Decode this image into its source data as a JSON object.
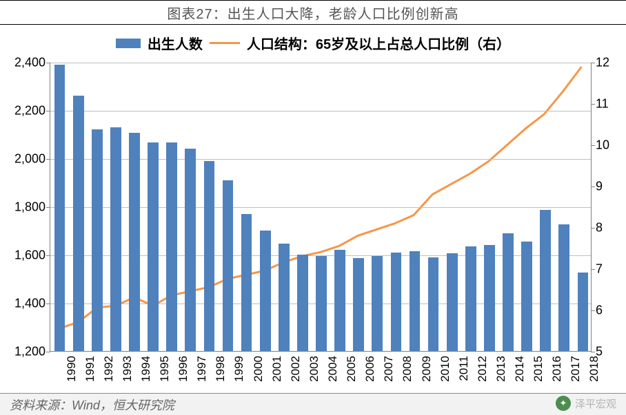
{
  "title": "图表27：出生人口大降，老龄人口比例创新高",
  "legend": {
    "bar_label": "出生人数",
    "line_label": "人口结构：65岁及以上占总人口比例（右）"
  },
  "source": "资料来源：Wind，恒大研究院",
  "watermark": "泽平宏观",
  "chart": {
    "type": "bar+line",
    "background_color": "#ffffff",
    "grid_color": "#bfbfbf",
    "axis_color": "#808080",
    "bar_color": "#4f81bd",
    "line_color": "#f79646",
    "line_width": 3,
    "bar_width_ratio": 0.58,
    "tick_fontsize": 18,
    "xlabel_fontsize": 17,
    "xlabel_rotation": -90,
    "y_left": {
      "min": 1200,
      "max": 2400,
      "step": 200,
      "ticks": [
        "1,200",
        "1,400",
        "1,600",
        "1,800",
        "2,000",
        "2,200",
        "2,400"
      ]
    },
    "y_right": {
      "min": 5,
      "max": 12,
      "step": 1,
      "ticks": [
        "5",
        "6",
        "7",
        "8",
        "9",
        "10",
        "11",
        "12"
      ]
    },
    "years": [
      "1990",
      "1991",
      "1992",
      "1993",
      "1994",
      "1995",
      "1996",
      "1997",
      "1998",
      "1999",
      "2000",
      "2001",
      "2002",
      "2003",
      "2004",
      "2005",
      "2006",
      "2007",
      "2008",
      "2009",
      "2010",
      "2011",
      "2012",
      "2013",
      "2014",
      "2015",
      "2016",
      "2017",
      "2018"
    ],
    "births": [
      2390,
      2260,
      2120,
      2130,
      2105,
      2065,
      2065,
      2040,
      1990,
      1910,
      1770,
      1700,
      1645,
      1600,
      1595,
      1620,
      1585,
      1595,
      1610,
      1615,
      1590,
      1605,
      1635,
      1640,
      1690,
      1655,
      1785,
      1725,
      1525
    ],
    "elderly_pct": [
      5.55,
      5.7,
      6.05,
      6.1,
      6.3,
      6.1,
      6.35,
      6.45,
      6.55,
      6.75,
      6.85,
      6.95,
      7.15,
      7.3,
      7.4,
      7.55,
      7.8,
      7.95,
      8.1,
      8.3,
      8.8,
      9.05,
      9.3,
      9.6,
      10.0,
      10.4,
      10.75,
      11.3,
      11.9
    ]
  }
}
